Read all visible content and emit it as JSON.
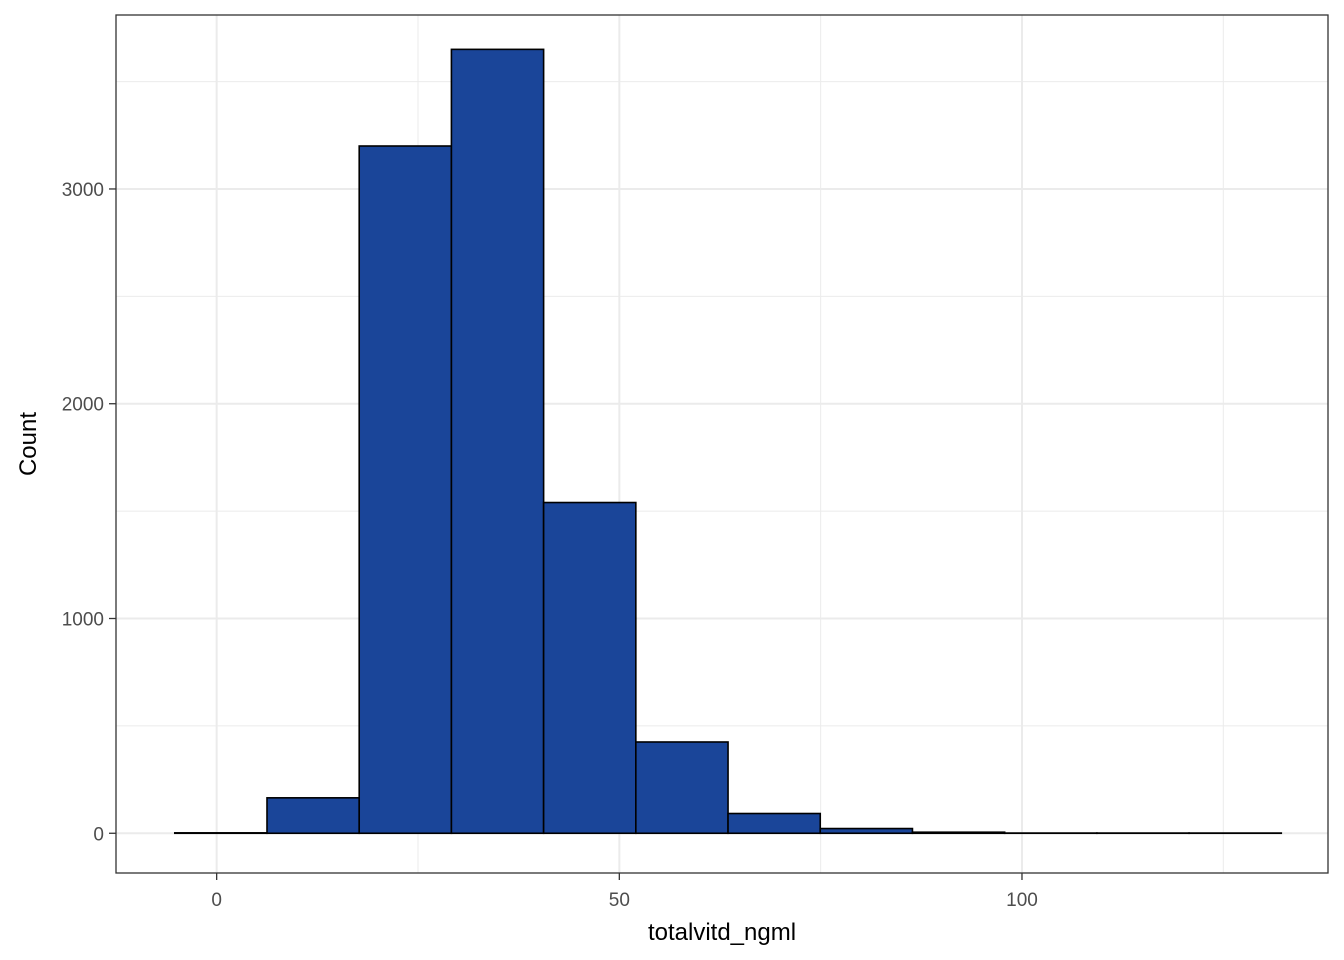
{
  "chart_data": {
    "type": "bar",
    "xlabel": "totalvitd_ngml",
    "ylabel": "Count",
    "xlim": [
      -12.5,
      138
    ],
    "ylim": [
      -185,
      3810
    ],
    "x_ticks": [
      0,
      50,
      100
    ],
    "y_ticks": [
      0,
      1000,
      2000,
      3000
    ],
    "x_tick_labels": [
      "0",
      "50",
      "100"
    ],
    "y_tick_labels": [
      "0",
      "1000",
      "2000",
      "3000"
    ],
    "bin_width": 11.45,
    "bin_edges": [
      -5.2,
      6.25,
      17.7,
      29.15,
      40.6,
      52.05,
      63.5,
      74.95,
      86.4,
      97.85,
      109.3,
      120.75,
      132.2
    ],
    "counts": [
      2,
      165,
      3200,
      3650,
      1540,
      425,
      92,
      22,
      5,
      1,
      1,
      1
    ],
    "grid": true,
    "colors": {
      "bar_fill": "#1a4599",
      "bar_outline": "#000000",
      "grid": "#ebebeb",
      "panel_border": "#333333",
      "background": "#ffffff"
    }
  }
}
